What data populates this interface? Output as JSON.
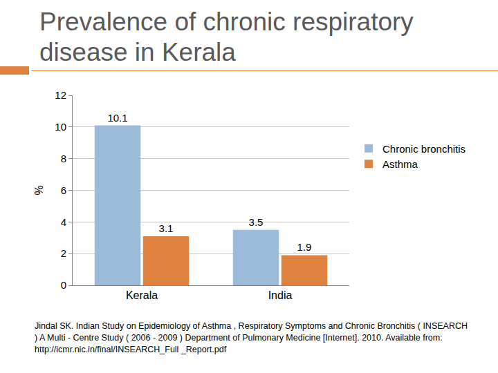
{
  "chart_data": {
    "type": "bar",
    "title": "Prevalence of chronic respiratory disease in Kerala",
    "y_label": "%",
    "categories": [
      "Kerala",
      "India"
    ],
    "series": [
      {
        "name": "Chronic bronchitis",
        "color": "#9bbbd9",
        "values": [
          10.1,
          3.5
        ]
      },
      {
        "name": "Asthma",
        "color": "#e0823f",
        "values": [
          3.1,
          1.9
        ]
      }
    ],
    "ylim": [
      0,
      12
    ],
    "yticks": [
      0,
      2,
      4,
      6,
      8,
      10,
      12
    ],
    "grid": true,
    "legend": "right",
    "data_labels": true,
    "annotations": [
      "Jindal SK. Indian Study on Epidemiology of Asthma , Respiratory Symptoms and Chronic Bronchitis ( INSEARCH ) A Multi - Centre Study ( 2006 - 2009 ) Department of Pulmonary Medicine [Internet]. 2010. Available from: http://icmr.nic.in/final/INSEARCH_Full _Report.pdf"
    ]
  }
}
